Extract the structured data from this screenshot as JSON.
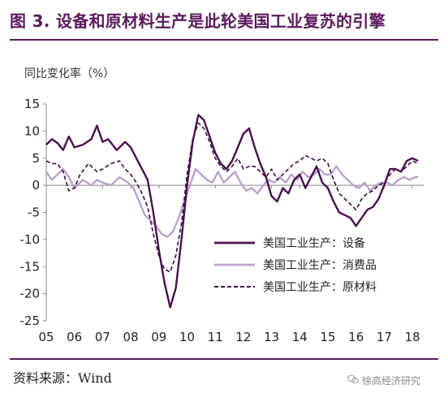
{
  "title": "图 3. 设备和原材料生产是此轮美国工业复苏的引擎",
  "source": "资料来源：Wind",
  "watermark": "徐高经济研究",
  "colors": {
    "title": "#5a1a5c",
    "equipment": "#4a0f4c",
    "consumer": "#b9a2cb",
    "material": "#3d0d3f"
  },
  "chart_data": {
    "type": "line",
    "ylabel": "同比变化率（%）",
    "ylim": [
      -25,
      15
    ],
    "yticks": [
      15,
      10,
      5,
      0,
      -5,
      -10,
      -15,
      -20,
      -25
    ],
    "xlim": [
      2005,
      2018.4
    ],
    "xticks": [
      {
        "label": "05",
        "value": 2005
      },
      {
        "label": "06",
        "value": 2006
      },
      {
        "label": "07",
        "value": 2007
      },
      {
        "label": "08",
        "value": 2008
      },
      {
        "label": "09",
        "value": 2009
      },
      {
        "label": "10",
        "value": 2010
      },
      {
        "label": "11",
        "value": 2011
      },
      {
        "label": "12",
        "value": 2012
      },
      {
        "label": "13",
        "value": 2013
      },
      {
        "label": "14",
        "value": 2014
      },
      {
        "label": "15",
        "value": 2015
      },
      {
        "label": "16",
        "value": 2016
      },
      {
        "label": "17",
        "value": 2017
      },
      {
        "label": "18",
        "value": 2018
      }
    ],
    "legend_position": "lower-right",
    "series": [
      {
        "name": "美国工业生产：设备",
        "style": "solid",
        "points": [
          [
            2005.0,
            7.5
          ],
          [
            2005.2,
            8.5
          ],
          [
            2005.4,
            7.8
          ],
          [
            2005.6,
            6.5
          ],
          [
            2005.8,
            9.0
          ],
          [
            2006.0,
            7.0
          ],
          [
            2006.3,
            7.5
          ],
          [
            2006.6,
            8.5
          ],
          [
            2006.8,
            11.0
          ],
          [
            2007.0,
            8.0
          ],
          [
            2007.2,
            8.5
          ],
          [
            2007.5,
            6.5
          ],
          [
            2007.8,
            8.0
          ],
          [
            2008.0,
            7.0
          ],
          [
            2008.2,
            5.0
          ],
          [
            2008.4,
            3.0
          ],
          [
            2008.6,
            1.0
          ],
          [
            2008.8,
            -5.0
          ],
          [
            2009.0,
            -12.0
          ],
          [
            2009.2,
            -18.0
          ],
          [
            2009.4,
            -22.5
          ],
          [
            2009.6,
            -19.0
          ],
          [
            2009.8,
            -10.0
          ],
          [
            2010.0,
            0.0
          ],
          [
            2010.2,
            8.0
          ],
          [
            2010.4,
            13.0
          ],
          [
            2010.6,
            12.0
          ],
          [
            2010.8,
            9.0
          ],
          [
            2011.0,
            6.0
          ],
          [
            2011.2,
            4.0
          ],
          [
            2011.4,
            3.0
          ],
          [
            2011.6,
            4.5
          ],
          [
            2011.8,
            7.0
          ],
          [
            2012.0,
            9.5
          ],
          [
            2012.2,
            10.5
          ],
          [
            2012.4,
            7.0
          ],
          [
            2012.6,
            4.0
          ],
          [
            2012.8,
            1.5
          ],
          [
            2013.0,
            -2.0
          ],
          [
            2013.2,
            -3.0
          ],
          [
            2013.4,
            -0.5
          ],
          [
            2013.6,
            -1.5
          ],
          [
            2013.8,
            1.0
          ],
          [
            2014.0,
            2.0
          ],
          [
            2014.2,
            -0.5
          ],
          [
            2014.4,
            1.5
          ],
          [
            2014.6,
            3.5
          ],
          [
            2014.8,
            0.5
          ],
          [
            2015.0,
            -0.5
          ],
          [
            2015.2,
            -3.0
          ],
          [
            2015.4,
            -5.0
          ],
          [
            2015.6,
            -5.5
          ],
          [
            2015.8,
            -6.0
          ],
          [
            2016.0,
            -7.5
          ],
          [
            2016.2,
            -6.0
          ],
          [
            2016.4,
            -4.5
          ],
          [
            2016.6,
            -4.0
          ],
          [
            2016.8,
            -2.5
          ],
          [
            2017.0,
            0.0
          ],
          [
            2017.2,
            3.0
          ],
          [
            2017.4,
            3.0
          ],
          [
            2017.6,
            2.5
          ],
          [
            2017.8,
            4.5
          ],
          [
            2018.0,
            5.0
          ],
          [
            2018.2,
            4.5
          ]
        ]
      },
      {
        "name": "美国工业生产：消费品",
        "style": "solid",
        "points": [
          [
            2005.0,
            2.5
          ],
          [
            2005.2,
            1.0
          ],
          [
            2005.4,
            2.0
          ],
          [
            2005.6,
            3.0
          ],
          [
            2005.8,
            1.5
          ],
          [
            2006.0,
            -0.5
          ],
          [
            2006.3,
            1.0
          ],
          [
            2006.6,
            0.0
          ],
          [
            2006.8,
            1.0
          ],
          [
            2007.0,
            0.5
          ],
          [
            2007.3,
            0.0
          ],
          [
            2007.6,
            1.5
          ],
          [
            2007.9,
            0.5
          ],
          [
            2008.1,
            -0.5
          ],
          [
            2008.3,
            -3.0
          ],
          [
            2008.5,
            -5.5
          ],
          [
            2008.7,
            -6.5
          ],
          [
            2008.9,
            -7.5
          ],
          [
            2009.1,
            -9.0
          ],
          [
            2009.3,
            -9.5
          ],
          [
            2009.5,
            -8.5
          ],
          [
            2009.7,
            -6.0
          ],
          [
            2009.9,
            -3.0
          ],
          [
            2010.1,
            0.0
          ],
          [
            2010.3,
            3.0
          ],
          [
            2010.5,
            2.0
          ],
          [
            2010.7,
            1.0
          ],
          [
            2010.9,
            0.5
          ],
          [
            2011.1,
            2.5
          ],
          [
            2011.3,
            0.5
          ],
          [
            2011.5,
            1.5
          ],
          [
            2011.7,
            2.5
          ],
          [
            2011.9,
            0.5
          ],
          [
            2012.1,
            -1.0
          ],
          [
            2012.3,
            -0.5
          ],
          [
            2012.5,
            -1.5
          ],
          [
            2012.7,
            0.0
          ],
          [
            2012.9,
            1.0
          ],
          [
            2013.1,
            0.5
          ],
          [
            2013.3,
            1.5
          ],
          [
            2013.5,
            0.5
          ],
          [
            2013.7,
            2.0
          ],
          [
            2013.9,
            1.0
          ],
          [
            2014.1,
            2.5
          ],
          [
            2014.3,
            1.5
          ],
          [
            2014.5,
            2.0
          ],
          [
            2014.7,
            3.0
          ],
          [
            2014.9,
            2.0
          ],
          [
            2015.1,
            2.0
          ],
          [
            2015.3,
            3.5
          ],
          [
            2015.5,
            2.0
          ],
          [
            2015.7,
            1.0
          ],
          [
            2015.9,
            0.0
          ],
          [
            2016.1,
            -0.5
          ],
          [
            2016.3,
            0.5
          ],
          [
            2016.5,
            -1.0
          ],
          [
            2016.7,
            0.0
          ],
          [
            2016.9,
            0.5
          ],
          [
            2017.1,
            0.5
          ],
          [
            2017.3,
            0.0
          ],
          [
            2017.5,
            1.0
          ],
          [
            2017.7,
            1.5
          ],
          [
            2017.9,
            1.0
          ],
          [
            2018.1,
            1.5
          ],
          [
            2018.2,
            1.5
          ]
        ]
      },
      {
        "name": "美国工业生产：原材料",
        "style": "dashed",
        "points": [
          [
            2005.0,
            4.5
          ],
          [
            2005.2,
            4.0
          ],
          [
            2005.4,
            4.0
          ],
          [
            2005.6,
            2.5
          ],
          [
            2005.8,
            -1.0
          ],
          [
            2006.0,
            -0.5
          ],
          [
            2006.2,
            2.0
          ],
          [
            2006.5,
            4.0
          ],
          [
            2006.8,
            2.5
          ],
          [
            2007.0,
            3.0
          ],
          [
            2007.3,
            4.0
          ],
          [
            2007.6,
            4.5
          ],
          [
            2007.8,
            3.0
          ],
          [
            2008.0,
            2.0
          ],
          [
            2008.2,
            0.5
          ],
          [
            2008.4,
            -1.5
          ],
          [
            2008.6,
            -4.0
          ],
          [
            2008.8,
            -9.0
          ],
          [
            2009.0,
            -13.0
          ],
          [
            2009.2,
            -15.5
          ],
          [
            2009.4,
            -16.0
          ],
          [
            2009.6,
            -13.0
          ],
          [
            2009.8,
            -7.0
          ],
          [
            2010.0,
            2.0
          ],
          [
            2010.2,
            8.5
          ],
          [
            2010.4,
            11.5
          ],
          [
            2010.6,
            10.5
          ],
          [
            2010.8,
            8.0
          ],
          [
            2011.0,
            5.0
          ],
          [
            2011.2,
            3.5
          ],
          [
            2011.4,
            2.5
          ],
          [
            2011.6,
            3.5
          ],
          [
            2011.8,
            5.0
          ],
          [
            2012.0,
            3.0
          ],
          [
            2012.2,
            3.5
          ],
          [
            2012.4,
            3.5
          ],
          [
            2012.6,
            2.5
          ],
          [
            2012.8,
            1.5
          ],
          [
            2013.0,
            3.0
          ],
          [
            2013.2,
            1.0
          ],
          [
            2013.4,
            2.0
          ],
          [
            2013.6,
            3.0
          ],
          [
            2013.8,
            4.0
          ],
          [
            2014.0,
            4.5
          ],
          [
            2014.2,
            5.5
          ],
          [
            2014.4,
            5.0
          ],
          [
            2014.6,
            4.5
          ],
          [
            2014.8,
            5.0
          ],
          [
            2015.0,
            4.0
          ],
          [
            2015.2,
            1.0
          ],
          [
            2015.4,
            -1.5
          ],
          [
            2015.6,
            -2.5
          ],
          [
            2015.8,
            -3.5
          ],
          [
            2016.0,
            -4.5
          ],
          [
            2016.2,
            -2.5
          ],
          [
            2016.4,
            -1.5
          ],
          [
            2016.6,
            -1.0
          ],
          [
            2016.8,
            0.0
          ],
          [
            2017.0,
            0.5
          ],
          [
            2017.2,
            2.0
          ],
          [
            2017.4,
            3.0
          ],
          [
            2017.6,
            2.5
          ],
          [
            2017.8,
            3.5
          ],
          [
            2018.0,
            4.5
          ],
          [
            2018.2,
            4.0
          ]
        ]
      }
    ]
  }
}
